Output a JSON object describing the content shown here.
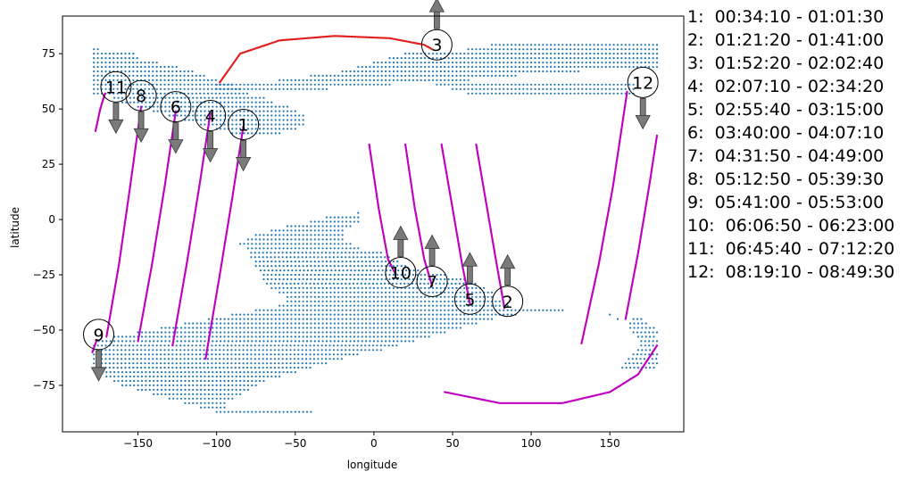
{
  "chart_data": {
    "type": "scatter",
    "xlabel": "longitude",
    "ylabel": "latitude",
    "xlim": [
      -198,
      197
    ],
    "ylim": [
      -96,
      92
    ],
    "xticks": [
      -150,
      -100,
      -50,
      0,
      50,
      100,
      150
    ],
    "yticks": [
      -75,
      -50,
      -25,
      0,
      25,
      50,
      75
    ],
    "grid": false,
    "colors": {
      "region": "#1f77b4",
      "track": "#c000c0",
      "current_track": "#e02020",
      "arrow": "#7a7a7a"
    },
    "coverage_region": {
      "rows": [
        {
          "lat": 77,
          "lon": [
            -178,
            -175
          ]
        },
        {
          "lat": 75,
          "lon": [
            -178,
            -152
          ]
        },
        {
          "lat": 73,
          "lon": [
            -178,
            -150
          ]
        },
        {
          "lat": 71,
          "lon": [
            -178,
            -138
          ]
        },
        {
          "lat": 69,
          "lon": [
            -178,
            -125
          ]
        },
        {
          "lat": 67,
          "lon": [
            -178,
            -115
          ]
        },
        {
          "lat": 65,
          "lon": [
            -178,
            -108
          ]
        },
        {
          "lat": 63,
          "lon": [
            -178,
            -100
          ]
        },
        {
          "lat": 61,
          "lon": [
            -178,
            -90
          ]
        },
        {
          "lat": 59,
          "lon": [
            -178,
            -85
          ]
        },
        {
          "lat": 57,
          "lon": [
            -178,
            -80
          ]
        },
        {
          "lat": 55,
          "lon": [
            -165,
            -70
          ]
        },
        {
          "lat": 53,
          "lon": [
            -160,
            -65
          ]
        },
        {
          "lat": 51,
          "lon": [
            -150,
            -55
          ]
        },
        {
          "lat": 49,
          "lon": [
            -140,
            -50
          ]
        },
        {
          "lat": 47,
          "lon": [
            -130,
            -45
          ]
        },
        {
          "lat": 45,
          "lon": [
            -120,
            -45
          ]
        },
        {
          "lat": 43,
          "lon": [
            -110,
            -45
          ]
        },
        {
          "lat": 41,
          "lon": [
            -100,
            -50
          ]
        },
        {
          "lat": 39,
          "lon": [
            -90,
            -60
          ]
        },
        {
          "lat": 59,
          "lon": [
            -100,
            -30
          ]
        },
        {
          "lat": 61,
          "lon": [
            -100,
            10
          ]
        },
        {
          "lat": 63,
          "lon": [
            -60,
            60
          ]
        },
        {
          "lat": 65,
          "lon": [
            -40,
            90
          ]
        },
        {
          "lat": 67,
          "lon": [
            -20,
            130
          ]
        },
        {
          "lat": 69,
          "lon": [
            -10,
            180
          ]
        },
        {
          "lat": 71,
          "lon": [
            0,
            180
          ]
        },
        {
          "lat": 73,
          "lon": [
            10,
            180
          ]
        },
        {
          "lat": 75,
          "lon": [
            20,
            180
          ]
        },
        {
          "lat": 77,
          "lon": [
            60,
            180
          ]
        },
        {
          "lat": 79,
          "lon": [
            75,
            180
          ]
        },
        {
          "lat": 57,
          "lon": [
            60,
            165
          ]
        },
        {
          "lat": 59,
          "lon": [
            50,
            165
          ]
        },
        {
          "lat": 61,
          "lon": [
            40,
            165
          ]
        },
        {
          "lat": 3,
          "lon": [
            -10,
            -8
          ]
        },
        {
          "lat": 1,
          "lon": [
            -30,
            -8
          ]
        },
        {
          "lat": -1,
          "lon": [
            -40,
            -10
          ]
        },
        {
          "lat": -3,
          "lon": [
            -55,
            -15
          ]
        },
        {
          "lat": -5,
          "lon": [
            -65,
            -18
          ]
        },
        {
          "lat": -7,
          "lon": [
            -75,
            -20
          ]
        },
        {
          "lat": -9,
          "lon": [
            -80,
            -18
          ]
        },
        {
          "lat": -11,
          "lon": [
            -85,
            -15
          ]
        },
        {
          "lat": -13,
          "lon": [
            -80,
            -10
          ]
        },
        {
          "lat": -15,
          "lon": [
            -78,
            5
          ]
        },
        {
          "lat": -17,
          "lon": [
            -78,
            10
          ]
        },
        {
          "lat": -19,
          "lon": [
            -75,
            15
          ]
        },
        {
          "lat": -21,
          "lon": [
            -75,
            20
          ]
        },
        {
          "lat": -23,
          "lon": [
            -72,
            30
          ]
        },
        {
          "lat": -25,
          "lon": [
            -70,
            45
          ]
        },
        {
          "lat": -27,
          "lon": [
            -70,
            60
          ]
        },
        {
          "lat": -29,
          "lon": [
            -68,
            65
          ]
        },
        {
          "lat": -31,
          "lon": [
            -65,
            70
          ]
        },
        {
          "lat": -33,
          "lon": [
            -60,
            75
          ]
        },
        {
          "lat": -35,
          "lon": [
            -55,
            75
          ]
        },
        {
          "lat": -37,
          "lon": [
            -55,
            80
          ]
        },
        {
          "lat": -39,
          "lon": [
            -60,
            85
          ]
        },
        {
          "lat": -41,
          "lon": [
            -75,
            120
          ]
        },
        {
          "lat": -43,
          "lon": [
            -90,
            90
          ]
        },
        {
          "lat": -45,
          "lon": [
            -105,
            75
          ]
        },
        {
          "lat": -47,
          "lon": [
            -120,
            65
          ]
        },
        {
          "lat": -49,
          "lon": [
            -135,
            55
          ]
        },
        {
          "lat": -51,
          "lon": [
            -150,
            45
          ]
        },
        {
          "lat": -53,
          "lon": [
            -165,
            35
          ]
        },
        {
          "lat": -55,
          "lon": [
            -175,
            25
          ]
        },
        {
          "lat": -57,
          "lon": [
            -178,
            15
          ]
        },
        {
          "lat": -59,
          "lon": [
            -178,
            5
          ]
        },
        {
          "lat": -61,
          "lon": [
            -178,
            -10
          ]
        },
        {
          "lat": -63,
          "lon": [
            -178,
            -20
          ]
        },
        {
          "lat": -65,
          "lon": [
            -178,
            -30
          ]
        },
        {
          "lat": -67,
          "lon": [
            -178,
            -40
          ]
        },
        {
          "lat": -69,
          "lon": [
            -175,
            -50
          ]
        },
        {
          "lat": -71,
          "lon": [
            -170,
            -60
          ]
        },
        {
          "lat": -73,
          "lon": [
            -165,
            -70
          ]
        },
        {
          "lat": -75,
          "lon": [
            -160,
            -75
          ]
        },
        {
          "lat": -77,
          "lon": [
            -150,
            -80
          ]
        },
        {
          "lat": -79,
          "lon": [
            -140,
            -85
          ]
        },
        {
          "lat": -81,
          "lon": [
            -130,
            -90
          ]
        },
        {
          "lat": -83,
          "lon": [
            -120,
            -95
          ]
        },
        {
          "lat": -85,
          "lon": [
            -110,
            -95
          ]
        },
        {
          "lat": -87,
          "lon": [
            -100,
            -40
          ]
        },
        {
          "lat": -45,
          "lon": [
            165,
            170
          ]
        },
        {
          "lat": -47,
          "lon": [
            163,
            175
          ]
        },
        {
          "lat": -49,
          "lon": [
            163,
            178
          ]
        },
        {
          "lat": -51,
          "lon": [
            165,
            180
          ]
        },
        {
          "lat": -53,
          "lon": [
            168,
            180
          ]
        },
        {
          "lat": -55,
          "lon": [
            170,
            180
          ]
        },
        {
          "lat": -57,
          "lon": [
            170,
            180
          ]
        },
        {
          "lat": -59,
          "lon": [
            168,
            180
          ]
        },
        {
          "lat": -61,
          "lon": [
            165,
            180
          ]
        },
        {
          "lat": -63,
          "lon": [
            162,
            180
          ]
        },
        {
          "lat": -65,
          "lon": [
            160,
            180
          ]
        },
        {
          "lat": -67,
          "lon": [
            158,
            180
          ]
        }
      ],
      "isolated_points": [
        [
          150,
          -43
        ],
        [
          155,
          -45
        ]
      ]
    },
    "tracks": [
      {
        "label": "1",
        "kind": "ascending",
        "points": [
          [
            -107,
            -63
          ],
          [
            -98,
            -25
          ],
          [
            -90,
            10
          ],
          [
            -83,
            42
          ]
        ]
      },
      {
        "label": "2",
        "kind": "descending",
        "points": [
          [
            65,
            34
          ],
          [
            72,
            5
          ],
          [
            78,
            -20
          ],
          [
            83,
            -40
          ]
        ]
      },
      {
        "label": "3",
        "kind": "current",
        "points": [
          [
            -98,
            62
          ],
          [
            -85,
            75
          ],
          [
            -60,
            81
          ],
          [
            -25,
            83
          ],
          [
            10,
            82
          ],
          [
            32,
            79
          ],
          [
            37,
            77
          ]
        ]
      },
      {
        "label": "4",
        "kind": "ascending",
        "points": [
          [
            -128,
            -57
          ],
          [
            -119,
            -20
          ],
          [
            -111,
            15
          ],
          [
            -104,
            48
          ]
        ]
      },
      {
        "label": "5",
        "kind": "descending",
        "points": [
          [
            43,
            34
          ],
          [
            50,
            5
          ],
          [
            56,
            -20
          ],
          [
            61,
            -38
          ]
        ]
      },
      {
        "label": "6",
        "kind": "ascending",
        "points": [
          [
            -150,
            -55
          ],
          [
            -141,
            -20
          ],
          [
            -133,
            15
          ],
          [
            -126,
            49
          ]
        ]
      },
      {
        "label": "7",
        "kind": "descending",
        "points": [
          [
            20,
            34
          ],
          [
            26,
            5
          ],
          [
            32,
            -18
          ],
          [
            37,
            -30
          ]
        ]
      },
      {
        "label": "8",
        "kind": "ascending",
        "points": [
          [
            -170,
            -53
          ],
          [
            -162,
            -20
          ],
          [
            -155,
            15
          ],
          [
            -148,
            51
          ]
        ]
      },
      {
        "label": "9",
        "kind": "ascending",
        "points": [
          [
            -179,
            -60
          ],
          [
            -176,
            -54
          ]
        ]
      },
      {
        "label": "10",
        "kind": "descending",
        "points": [
          [
            -3,
            34
          ],
          [
            3,
            5
          ],
          [
            9,
            -18
          ],
          [
            14,
            -25
          ]
        ]
      },
      {
        "label": "11",
        "kind": "ascending",
        "points": [
          [
            -177,
            40
          ],
          [
            -174,
            50
          ],
          [
            -171,
            57
          ]
        ]
      },
      {
        "label": "12",
        "kind": "ascending",
        "points": [
          [
            132,
            -56
          ],
          [
            143,
            -20
          ],
          [
            152,
            15
          ],
          [
            161,
            58
          ]
        ]
      },
      {
        "label": "12",
        "kind": "ascending",
        "points": [
          [
            160,
            -45
          ],
          [
            168,
            -15
          ],
          [
            175,
            15
          ],
          [
            180,
            38
          ]
        ]
      },
      {
        "label": "12",
        "kind": "south_arc",
        "points": [
          [
            45,
            -78
          ],
          [
            80,
            -83
          ],
          [
            120,
            -83
          ],
          [
            150,
            -78
          ],
          [
            168,
            -70
          ],
          [
            180,
            -57
          ]
        ]
      }
    ],
    "markers": [
      {
        "label": "1",
        "lon": -83,
        "lat": 43,
        "arrow": "down"
      },
      {
        "label": "2",
        "lon": 85,
        "lat": -37,
        "arrow": "up"
      },
      {
        "label": "3",
        "lon": 40,
        "lat": 79,
        "arrow": "up"
      },
      {
        "label": "4",
        "lon": -104,
        "lat": 47,
        "arrow": "down"
      },
      {
        "label": "5",
        "lon": 61,
        "lat": -36,
        "arrow": "up"
      },
      {
        "label": "6",
        "lon": -126,
        "lat": 51,
        "arrow": "down"
      },
      {
        "label": "7",
        "lon": 37,
        "lat": -28,
        "arrow": "up"
      },
      {
        "label": "8",
        "lon": -148,
        "lat": 56,
        "arrow": "down"
      },
      {
        "label": "9",
        "lon": -175,
        "lat": -52,
        "arrow": "down"
      },
      {
        "label": "10",
        "lon": 17,
        "lat": -24,
        "arrow": "up"
      },
      {
        "label": "11",
        "lon": -164,
        "lat": 60,
        "arrow": "down"
      },
      {
        "label": "12",
        "lon": 171,
        "lat": 62,
        "arrow": "down"
      }
    ],
    "legend": [
      "1:  00:34:10 - 01:01:30",
      "2:  01:21:20 - 01:41:00",
      "3:  01:52:20 - 02:02:40",
      "4:  02:07:10 - 02:34:20",
      "5:  02:55:40 - 03:15:00",
      "6:  03:40:00 - 04:07:10",
      "7:  04:31:50 - 04:49:00",
      "8:  05:12:50 - 05:39:30",
      "9:  05:41:00 - 05:53:00",
      "10:  06:06:50 - 06:23:00",
      "11:  06:45:40 - 07:12:20",
      "12:  08:19:10 - 08:49:30"
    ]
  }
}
